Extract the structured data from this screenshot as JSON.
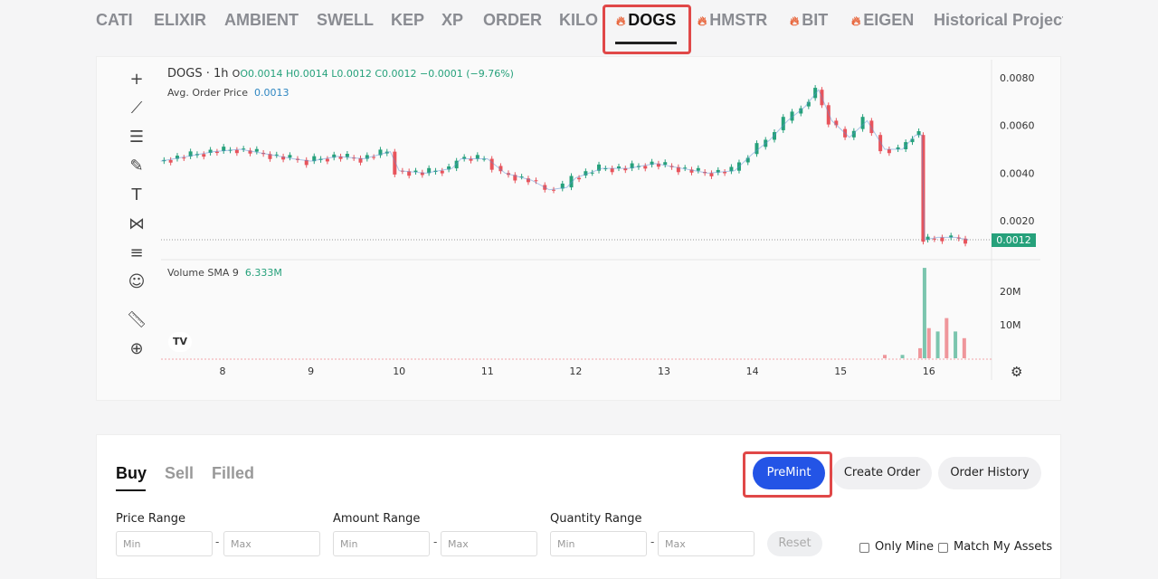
{
  "tabs": [
    {
      "label": "CATI",
      "hot": false
    },
    {
      "label": "ELIXIR",
      "hot": false
    },
    {
      "label": "AMBIENT",
      "hot": false
    },
    {
      "label": "SWELL",
      "hot": false
    },
    {
      "label": "KEP",
      "hot": false
    },
    {
      "label": "XP",
      "hot": false
    },
    {
      "label": "ORDER",
      "hot": false
    },
    {
      "label": "KILO",
      "hot": false
    },
    {
      "label": "DOGS",
      "hot": true,
      "active": true
    },
    {
      "label": "HMSTR",
      "hot": true
    },
    {
      "label": "BIT",
      "hot": true
    },
    {
      "label": "EIGEN",
      "hot": true
    },
    {
      "label": "Historical Project",
      "hot": false
    }
  ],
  "chart": {
    "symbol": "DOGS",
    "interval": "1h",
    "open": "O0.0014",
    "high": "H0.0014",
    "low": "L0.0012",
    "close": "C0.0012",
    "change": "−0.0001 (−9.76%)",
    "avg_label": "Avg. Order Price",
    "avg_value": "0.0013",
    "volume_label": "Volume SMA 9",
    "volume_value": "6.333M",
    "current_price": "0.0012",
    "colors": {
      "up": "#26a17b",
      "down": "#e8545c"
    }
  },
  "chart_data": {
    "type": "candlestick",
    "x_ticks": [
      "8",
      "9",
      "10",
      "11",
      "12",
      "13",
      "14",
      "15",
      "16"
    ],
    "y_ticks": [
      "0.0080",
      "0.0060",
      "0.0040",
      "0.0020"
    ],
    "volume_ticks": [
      "20M",
      "10M"
    ],
    "ylim": [
      0,
      0.0088
    ],
    "price": [
      [
        7.3,
        0.0045
      ],
      [
        7.6,
        0.0047
      ],
      [
        7.9,
        0.0049
      ],
      [
        8.2,
        0.005
      ],
      [
        8.5,
        0.0048
      ],
      [
        8.8,
        0.0046
      ],
      [
        9.0,
        0.0045
      ],
      [
        9.3,
        0.0047
      ],
      [
        9.6,
        0.0046
      ],
      [
        9.9,
        0.0049
      ],
      [
        10.0,
        0.0041
      ],
      [
        10.3,
        0.004
      ],
      [
        10.6,
        0.0042
      ],
      [
        10.7,
        0.0046
      ],
      [
        11.0,
        0.0046
      ],
      [
        11.2,
        0.004
      ],
      [
        11.5,
        0.0037
      ],
      [
        11.7,
        0.0033
      ],
      [
        11.9,
        0.0034
      ],
      [
        12.0,
        0.0038
      ],
      [
        12.3,
        0.0042
      ],
      [
        12.6,
        0.0042
      ],
      [
        12.9,
        0.0044
      ],
      [
        13.2,
        0.0042
      ],
      [
        13.5,
        0.004
      ],
      [
        13.8,
        0.0041
      ],
      [
        14.0,
        0.0048
      ],
      [
        14.2,
        0.0054
      ],
      [
        14.4,
        0.0062
      ],
      [
        14.6,
        0.0068
      ],
      [
        14.75,
        0.0075
      ],
      [
        14.9,
        0.0062
      ],
      [
        15.1,
        0.0055
      ],
      [
        15.3,
        0.0062
      ],
      [
        15.5,
        0.005
      ],
      [
        15.7,
        0.005
      ],
      [
        15.85,
        0.0056
      ],
      [
        15.92,
        0.0056
      ],
      [
        15.95,
        0.0012
      ],
      [
        16.1,
        0.0013
      ],
      [
        16.3,
        0.0013
      ],
      [
        16.45,
        0.0012
      ]
    ],
    "volume_millions": [
      [
        15.5,
        1
      ],
      [
        15.7,
        1
      ],
      [
        15.9,
        3
      ],
      [
        15.95,
        27
      ],
      [
        16.0,
        9
      ],
      [
        16.1,
        8
      ],
      [
        16.2,
        12
      ],
      [
        16.3,
        8
      ],
      [
        16.4,
        6
      ]
    ]
  },
  "orders": {
    "tabs": [
      "Buy",
      "Sell",
      "Filled"
    ],
    "premint": "PreMint",
    "create": "Create Order",
    "history": "Order History",
    "price_range": "Price Range",
    "amount_range": "Amount Range",
    "quantity_range": "Quantity Range",
    "min": "Min",
    "max": "Max",
    "dash": "-",
    "reset": "Reset",
    "only_mine": "Only Mine",
    "match_assets": "Match My Assets"
  }
}
